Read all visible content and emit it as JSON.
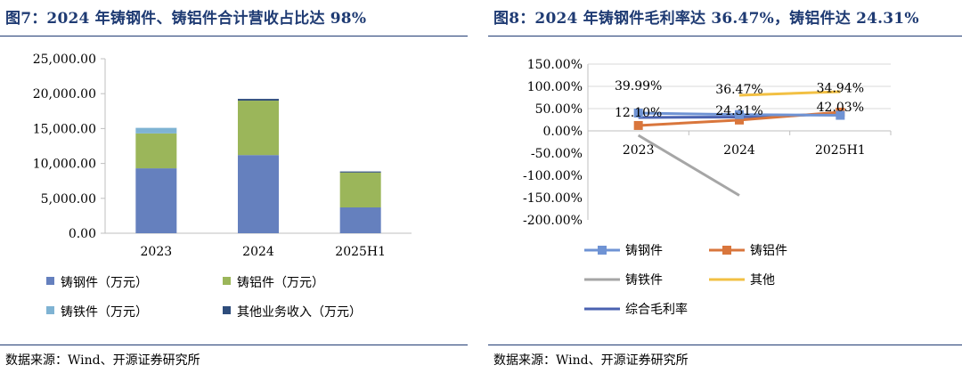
{
  "left": {
    "title": "图7：2024 年铸钢件、铸铝件合计营收占比达 98%",
    "source": "数据来源：Wind、开源证券研究所"
  },
  "right": {
    "title": "图8：2024 年铸钢件毛利率达 36.47%，铸铝件达 24.31%",
    "source": "数据来源：Wind、开源证券研究所"
  },
  "chart_data": [
    {
      "type": "bar",
      "stacked": true,
      "title": "",
      "xlabel": "",
      "ylabel": "",
      "categories": [
        "2023",
        "2024",
        "2025H1"
      ],
      "yticks": [
        "0.00",
        "5,000.00",
        "10,000.00",
        "15,000.00",
        "20,000.00",
        "25,000.00"
      ],
      "ylim": [
        0,
        25000
      ],
      "grid": false,
      "legend_position": "bottom",
      "series": [
        {
          "name": "铸钢件（万元）",
          "values": [
            9300,
            11200,
            3700
          ],
          "color": "#6580be"
        },
        {
          "name": "铸铝件（万元）",
          "values": [
            5000,
            7800,
            5000
          ],
          "color": "#9bb65a"
        },
        {
          "name": "铸铁件（万元）",
          "values": [
            800,
            0,
            0
          ],
          "color": "#7fb3d3"
        },
        {
          "name": "其他业务收入（万元）",
          "values": [
            0,
            250,
            150
          ],
          "color": "#2f4d7c"
        }
      ]
    },
    {
      "type": "line",
      "title": "",
      "xlabel": "",
      "ylabel": "",
      "categories": [
        "2023",
        "2024",
        "2025H1"
      ],
      "yticks": [
        "-200.00%",
        "-150.00%",
        "-100.00%",
        "-50.00%",
        "0.00%",
        "50.00%",
        "100.00%",
        "150.00%"
      ],
      "ylim": [
        -200,
        150
      ],
      "grid": true,
      "legend_position": "bottom",
      "series": [
        {
          "name": "铸钢件",
          "values": [
            39.99,
            36.47,
            34.94
          ],
          "color": "#6f93d4",
          "marker": "square",
          "labels": [
            "39.99%",
            "36.47%",
            "34.94%"
          ]
        },
        {
          "name": "铸铝件",
          "values": [
            12.1,
            24.31,
            42.03
          ],
          "color": "#d9763c",
          "marker": "square",
          "labels": [
            "12.10%",
            "24.31%",
            "42.03%"
          ]
        },
        {
          "name": "铸铁件",
          "values": [
            -10,
            -145,
            null
          ],
          "color": "#a6a6a6",
          "marker": "none"
        },
        {
          "name": "其他",
          "values": [
            null,
            80,
            88
          ],
          "color": "#f2c043",
          "marker": "none"
        },
        {
          "name": "综合毛利率",
          "values": [
            30,
            31,
            38
          ],
          "color": "#4a62b0",
          "marker": "none"
        }
      ]
    }
  ]
}
